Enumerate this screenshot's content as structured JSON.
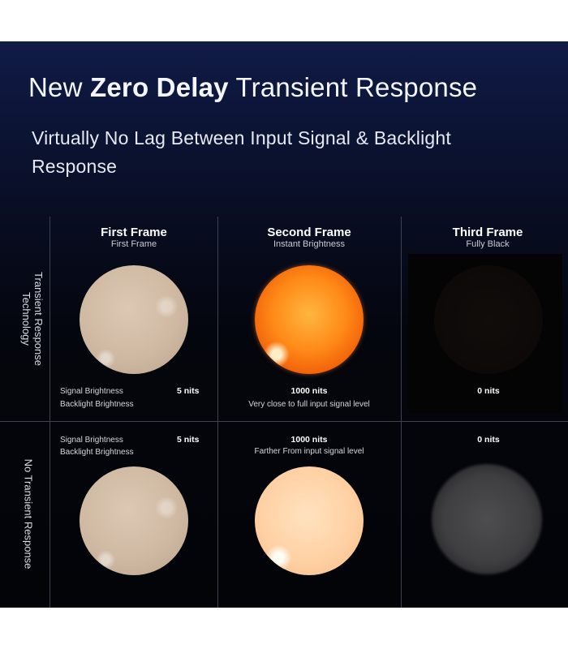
{
  "header": {
    "title_prefix": "New ",
    "title_bold": "Zero Delay",
    "title_suffix": " Transient Response",
    "subtitle": "Virtually No Lag Between Input Signal & Backlight Response"
  },
  "columns": [
    {
      "title": "First Frame",
      "subtitle": "First Frame"
    },
    {
      "title": "Second Frame",
      "subtitle": "Instant Brightness"
    },
    {
      "title": "Third Frame",
      "subtitle": "Fully Black"
    }
  ],
  "rows": [
    {
      "label_line1": "Transient Response",
      "label_line2": "Technology",
      "signal_label": "Signal Brightness",
      "backlight_label": "Backlight Brightness",
      "first_value": "5 nits",
      "second_value": "1000 nits",
      "second_note": "Very close to full input signal level",
      "third_value": "0 nits"
    },
    {
      "label_line1": "No Transient Response",
      "signal_label": "Signal Brightness",
      "backlight_label": "Backlight Brightness",
      "first_value": "5 nits",
      "second_value": "1000 nits",
      "second_note": "Farther From input signal level",
      "third_value": "0 nits"
    }
  ],
  "colors": {
    "background_top": "#101b46",
    "background_bottom": "#030408",
    "sun_orange": "#ff8a18",
    "sun_pale": "#ffd1a4",
    "beige": "#cfb9a3",
    "grid_line": "#3d4250"
  }
}
